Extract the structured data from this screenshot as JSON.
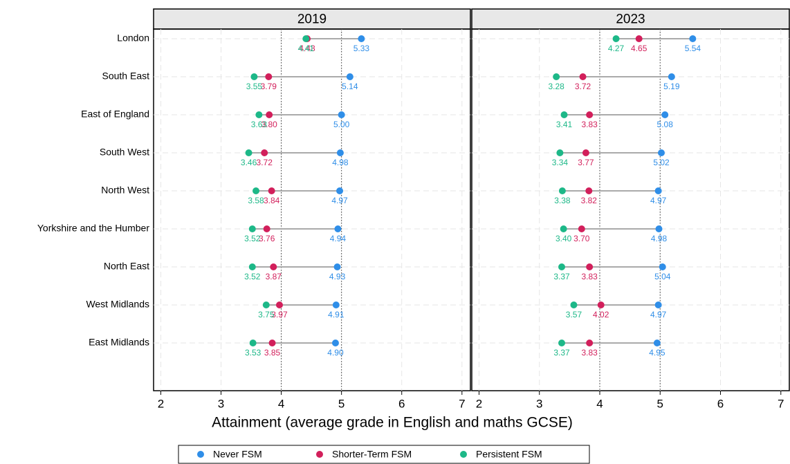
{
  "chart_data": {
    "type": "dot",
    "x_label": "Attainment (average grade in English and maths GCSE)",
    "categories": [
      "London",
      "South East",
      "East of England",
      "South West",
      "North West",
      "Yorkshire and the Humber",
      "North East",
      "West Midlands",
      "East Midlands"
    ],
    "series": [
      {
        "name": "Never FSM",
        "color": "#2f8ee8"
      },
      {
        "name": "Shorter-Term FSM",
        "color": "#d21f5b"
      },
      {
        "name": "Persistent FSM",
        "color": "#1db888"
      }
    ],
    "panels": [
      {
        "title": "2019",
        "series": [
          {
            "values": [
              5.33,
              5.14,
              5.0,
              4.98,
              4.97,
              4.94,
              4.93,
              4.91,
              4.9
            ],
            "value_labels": [
              "5.33",
              "5.14",
              "5.00",
              "4.98",
              "4.97",
              "4.94",
              "4.93",
              "4.91",
              "4.90"
            ]
          },
          {
            "values": [
              4.43,
              3.79,
              3.8,
              3.72,
              3.84,
              3.76,
              3.87,
              3.97,
              3.85
            ],
            "value_labels": [
              "4.43",
              "3.79",
              "3.80",
              "3.72",
              "3.84",
              "3.76",
              "3.87",
              "3.97",
              "3.85"
            ]
          },
          {
            "values": [
              4.41,
              3.55,
              3.63,
              3.46,
              3.58,
              3.52,
              3.52,
              3.75,
              3.53
            ],
            "value_labels": [
              "4.41",
              "3.55",
              "3.63",
              "3.46",
              "3.58",
              "3.52",
              "3.52",
              "3.75",
              "3.53"
            ]
          }
        ]
      },
      {
        "title": "2023",
        "series": [
          {
            "values": [
              5.54,
              5.19,
              5.08,
              5.02,
              4.97,
              4.98,
              5.04,
              4.97,
              4.95
            ],
            "value_labels": [
              "5.54",
              "5.19",
              "5.08",
              "5.02",
              "4.97",
              "4.98",
              "5.04",
              "4.97",
              "4.95"
            ]
          },
          {
            "values": [
              4.65,
              3.72,
              3.83,
              3.77,
              3.82,
              3.7,
              3.83,
              4.02,
              3.83
            ],
            "value_labels": [
              "4.65",
              "3.72",
              "3.83",
              "3.77",
              "3.82",
              "3.70",
              "3.83",
              "4.02",
              "3.83"
            ]
          },
          {
            "values": [
              4.27,
              3.28,
              3.41,
              3.34,
              3.38,
              3.4,
              3.37,
              3.57,
              3.37
            ],
            "value_labels": [
              "4.27",
              "3.28",
              "3.41",
              "3.34",
              "3.38",
              "3.40",
              "3.37",
              "3.57",
              "3.37"
            ]
          }
        ]
      }
    ],
    "xlim": [
      1.88,
      7.14
    ],
    "xticks": [
      2,
      3,
      4,
      5,
      6,
      7
    ],
    "reference_lines": [
      4,
      5
    ],
    "grid": true,
    "legend_position": "bottom"
  }
}
